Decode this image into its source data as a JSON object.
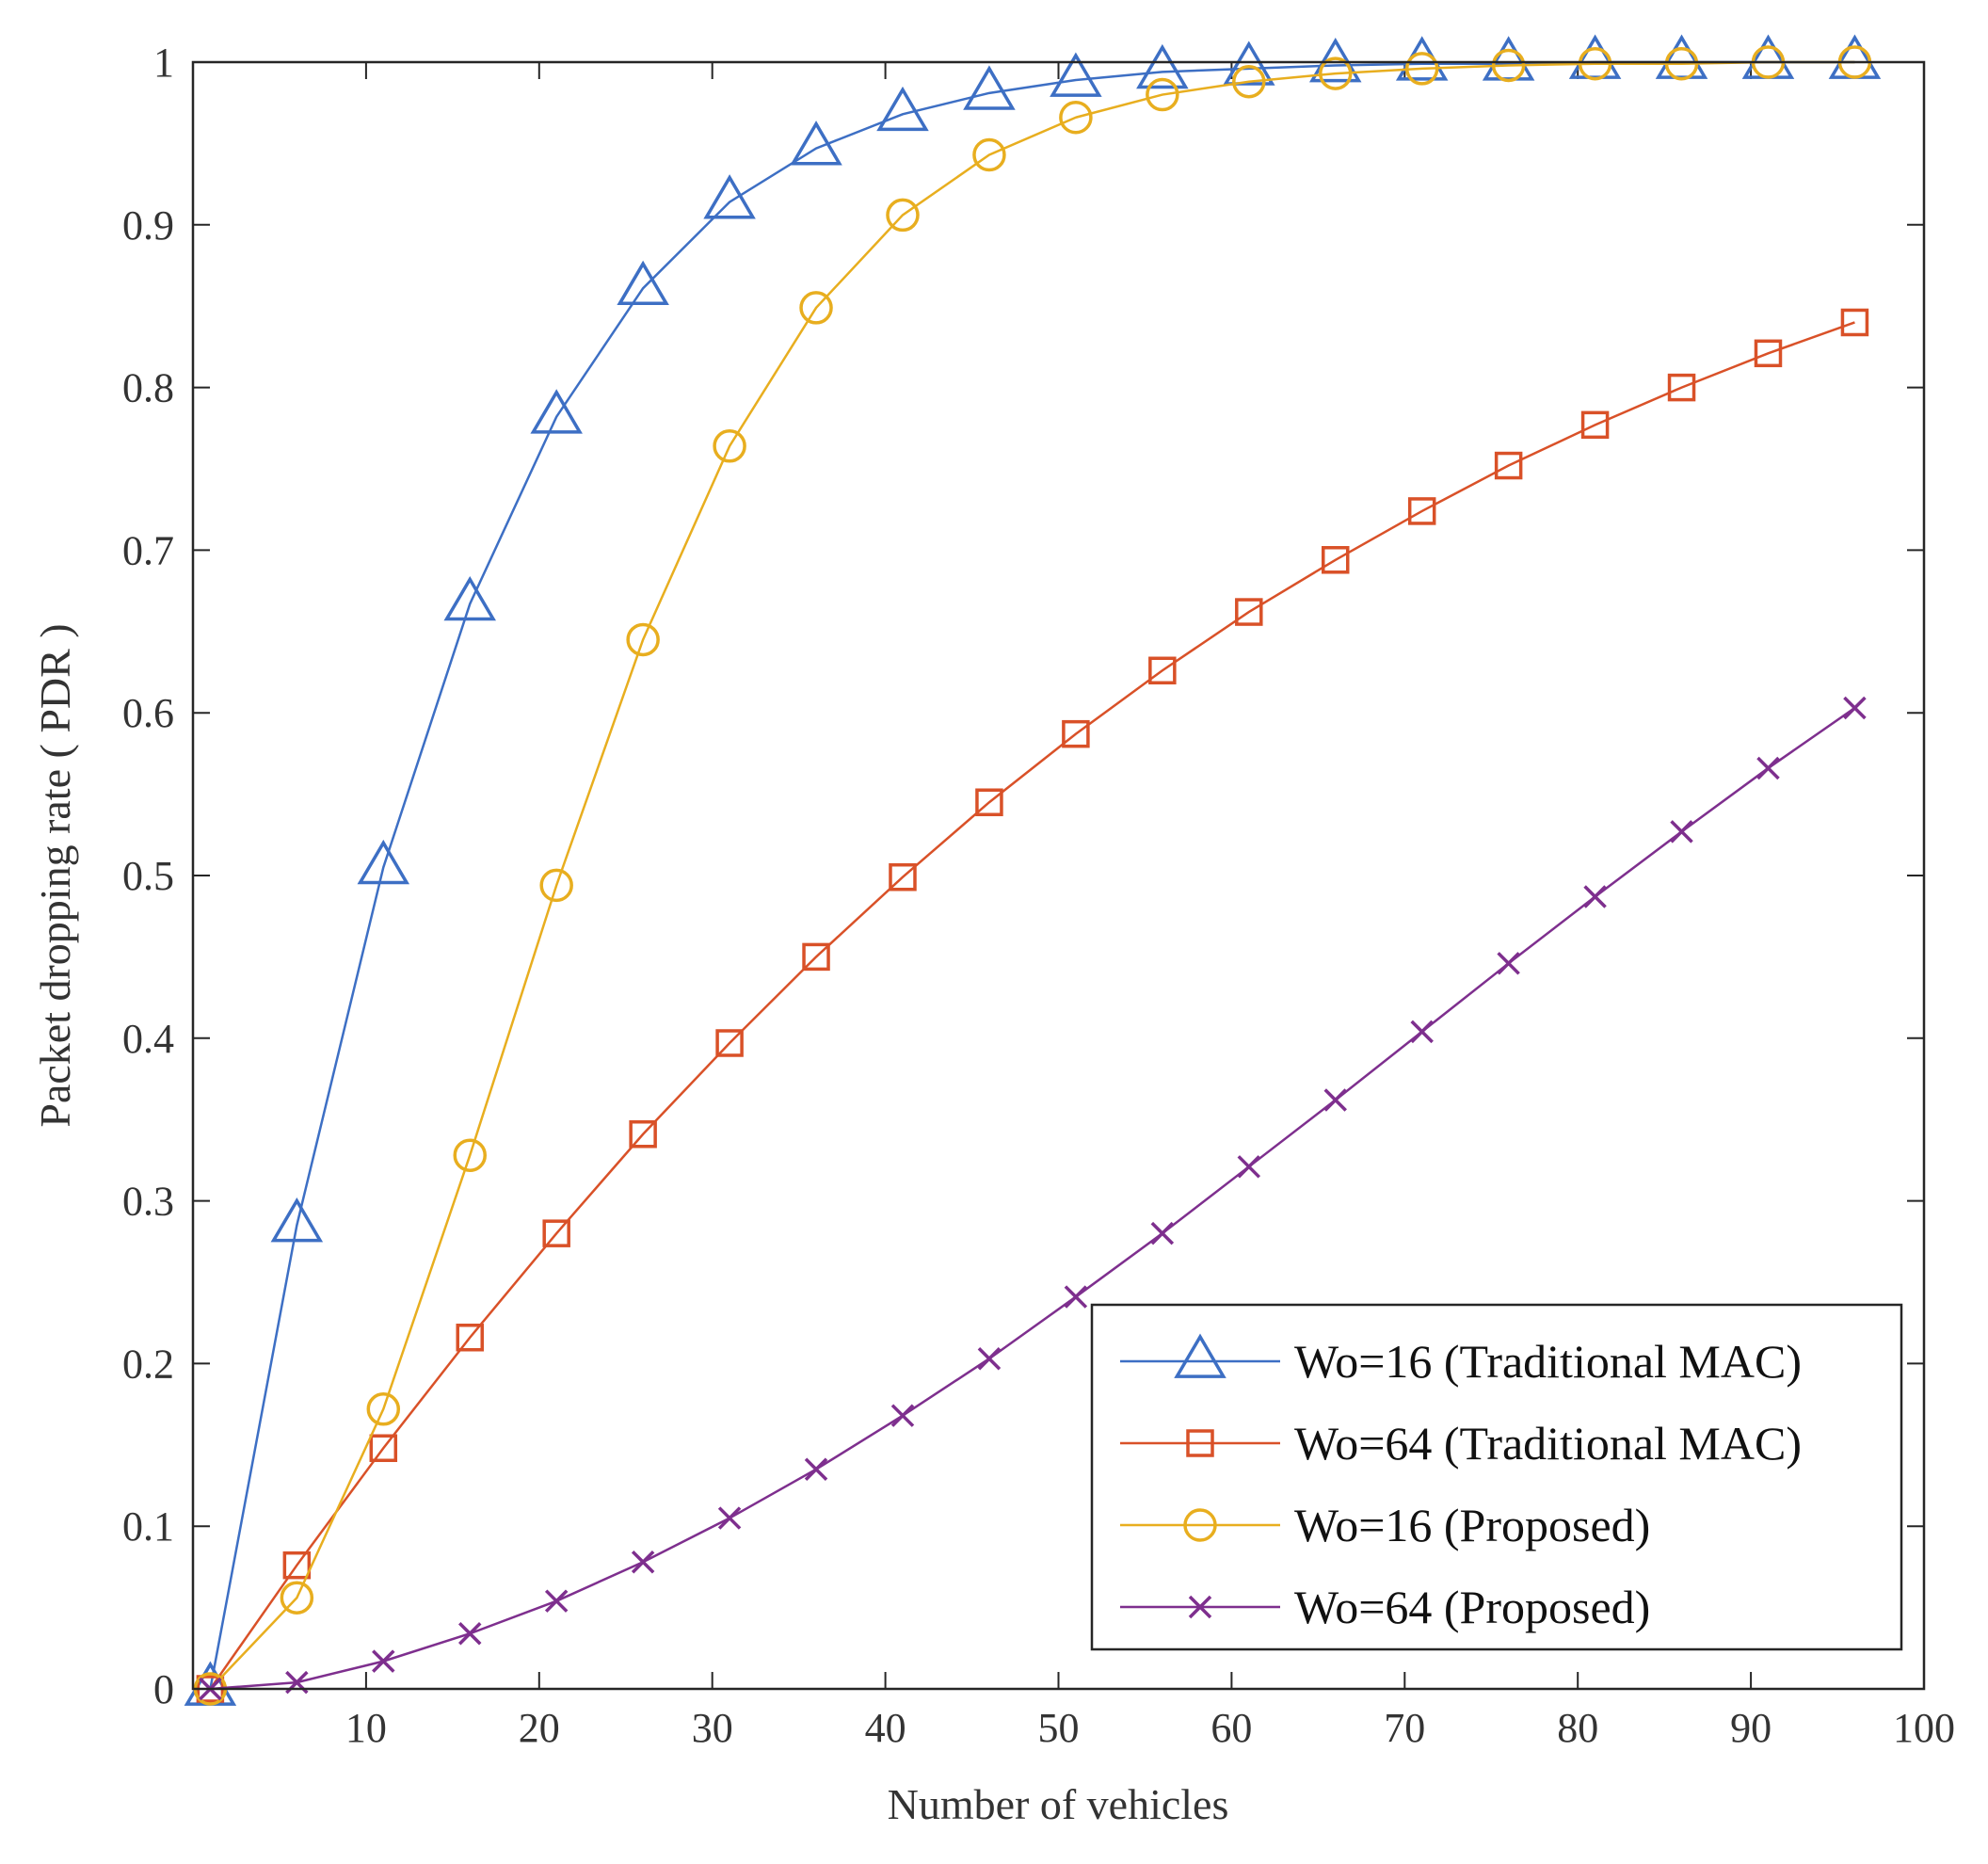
{
  "chart_data": {
    "type": "line",
    "title": "",
    "xlabel": "Number of vehicles",
    "ylabel": "Packet dropping rate ( PDR )",
    "xlim": [
      0,
      100
    ],
    "ylim": [
      0,
      1
    ],
    "grid": false,
    "legend_position": "bottom-right",
    "x_ticks": [
      10,
      20,
      30,
      40,
      50,
      60,
      70,
      80,
      90,
      100
    ],
    "x_tick_labels": [
      "10",
      "20",
      "30",
      "40",
      "50",
      "60",
      "70",
      "80",
      "90",
      "100"
    ],
    "y_ticks": [
      0,
      0.1,
      0.2,
      0.3,
      0.4,
      0.5,
      0.6,
      0.7,
      0.8,
      0.9,
      1
    ],
    "y_tick_labels": [
      "0",
      "0.1",
      "0.2",
      "0.3",
      "0.4",
      "0.5",
      "0.6",
      "0.7",
      "0.8",
      "0.9",
      "1"
    ],
    "x": [
      1,
      6,
      11,
      16,
      21,
      26,
      31,
      36,
      41,
      46,
      51,
      56,
      61,
      66,
      71,
      76,
      81,
      86,
      91,
      96
    ],
    "series": [
      {
        "name": "Wo=16 (Traditional MAC)",
        "color": "#3D6FC4",
        "marker": "triangle",
        "values": [
          0.0,
          0.285,
          0.505,
          0.667,
          0.782,
          0.861,
          0.914,
          0.947,
          0.968,
          0.981,
          0.989,
          0.994,
          0.996,
          0.998,
          0.999,
          0.999,
          1.0,
          1.0,
          1.0,
          1.0
        ]
      },
      {
        "name": "Wo=64 (Traditional MAC)",
        "color": "#D95128",
        "marker": "square",
        "values": [
          0.0,
          0.076,
          0.148,
          0.216,
          0.28,
          0.341,
          0.397,
          0.45,
          0.499,
          0.545,
          0.587,
          0.626,
          0.662,
          0.694,
          0.724,
          0.752,
          0.777,
          0.8,
          0.821,
          0.84
        ]
      },
      {
        "name": "Wo=16 (Proposed)",
        "color": "#E8AE1F",
        "marker": "circle",
        "values": [
          0.0,
          0.056,
          0.172,
          0.328,
          0.494,
          0.645,
          0.764,
          0.849,
          0.906,
          0.943,
          0.966,
          0.98,
          0.988,
          0.993,
          0.996,
          0.998,
          0.999,
          0.999,
          1.0,
          1.0
        ]
      },
      {
        "name": "Wo=64 (Proposed)",
        "color": "#7E2F8E",
        "marker": "x",
        "values": [
          0.0,
          0.004,
          0.017,
          0.034,
          0.054,
          0.078,
          0.105,
          0.135,
          0.168,
          0.203,
          0.241,
          0.28,
          0.321,
          0.362,
          0.404,
          0.446,
          0.487,
          0.527,
          0.566,
          0.603
        ]
      }
    ]
  }
}
